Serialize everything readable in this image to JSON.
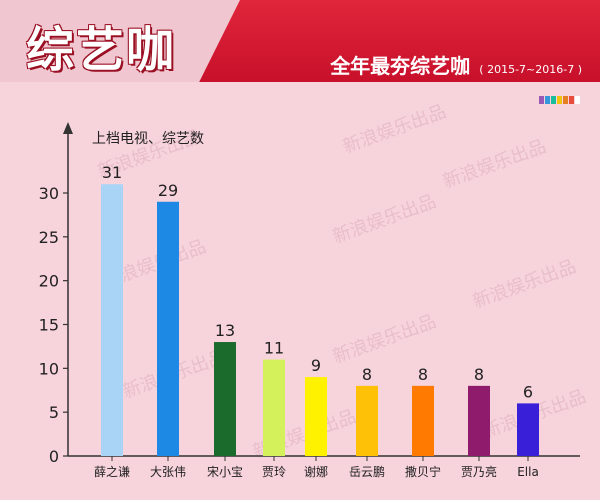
{
  "header": {
    "title": "综艺咖",
    "subtitle": "全年最夯综艺咖",
    "date_range": "( 2015-7~2016-7 )",
    "accent_color": "#d0142c"
  },
  "watermark": "新浪娱乐出品",
  "color_strip": [
    "#9b59b6",
    "#3498db",
    "#1abc9c",
    "#f1c40f",
    "#e67e22",
    "#e74c3c",
    "#ffffff"
  ],
  "chart_data": {
    "type": "bar",
    "ylabel": "上档电视、综艺数",
    "xlabel": "",
    "ylim": [
      0,
      35
    ],
    "yticks": [
      0,
      5,
      10,
      15,
      20,
      25,
      30
    ],
    "grid": false,
    "categories": [
      "薛之谦",
      "大张伟",
      "宋小宝",
      "贾玲",
      "谢娜",
      "岳云鹏",
      "撒贝宁",
      "贾乃亮",
      "Ella"
    ],
    "values": [
      31,
      29,
      13,
      11,
      9,
      8,
      8,
      8,
      6
    ],
    "colors": [
      "#a9d4f5",
      "#1e88e5",
      "#1b6b2d",
      "#d4f05a",
      "#fff200",
      "#ffc107",
      "#ff7a00",
      "#8e1b6b",
      "#3a1fd8"
    ]
  }
}
